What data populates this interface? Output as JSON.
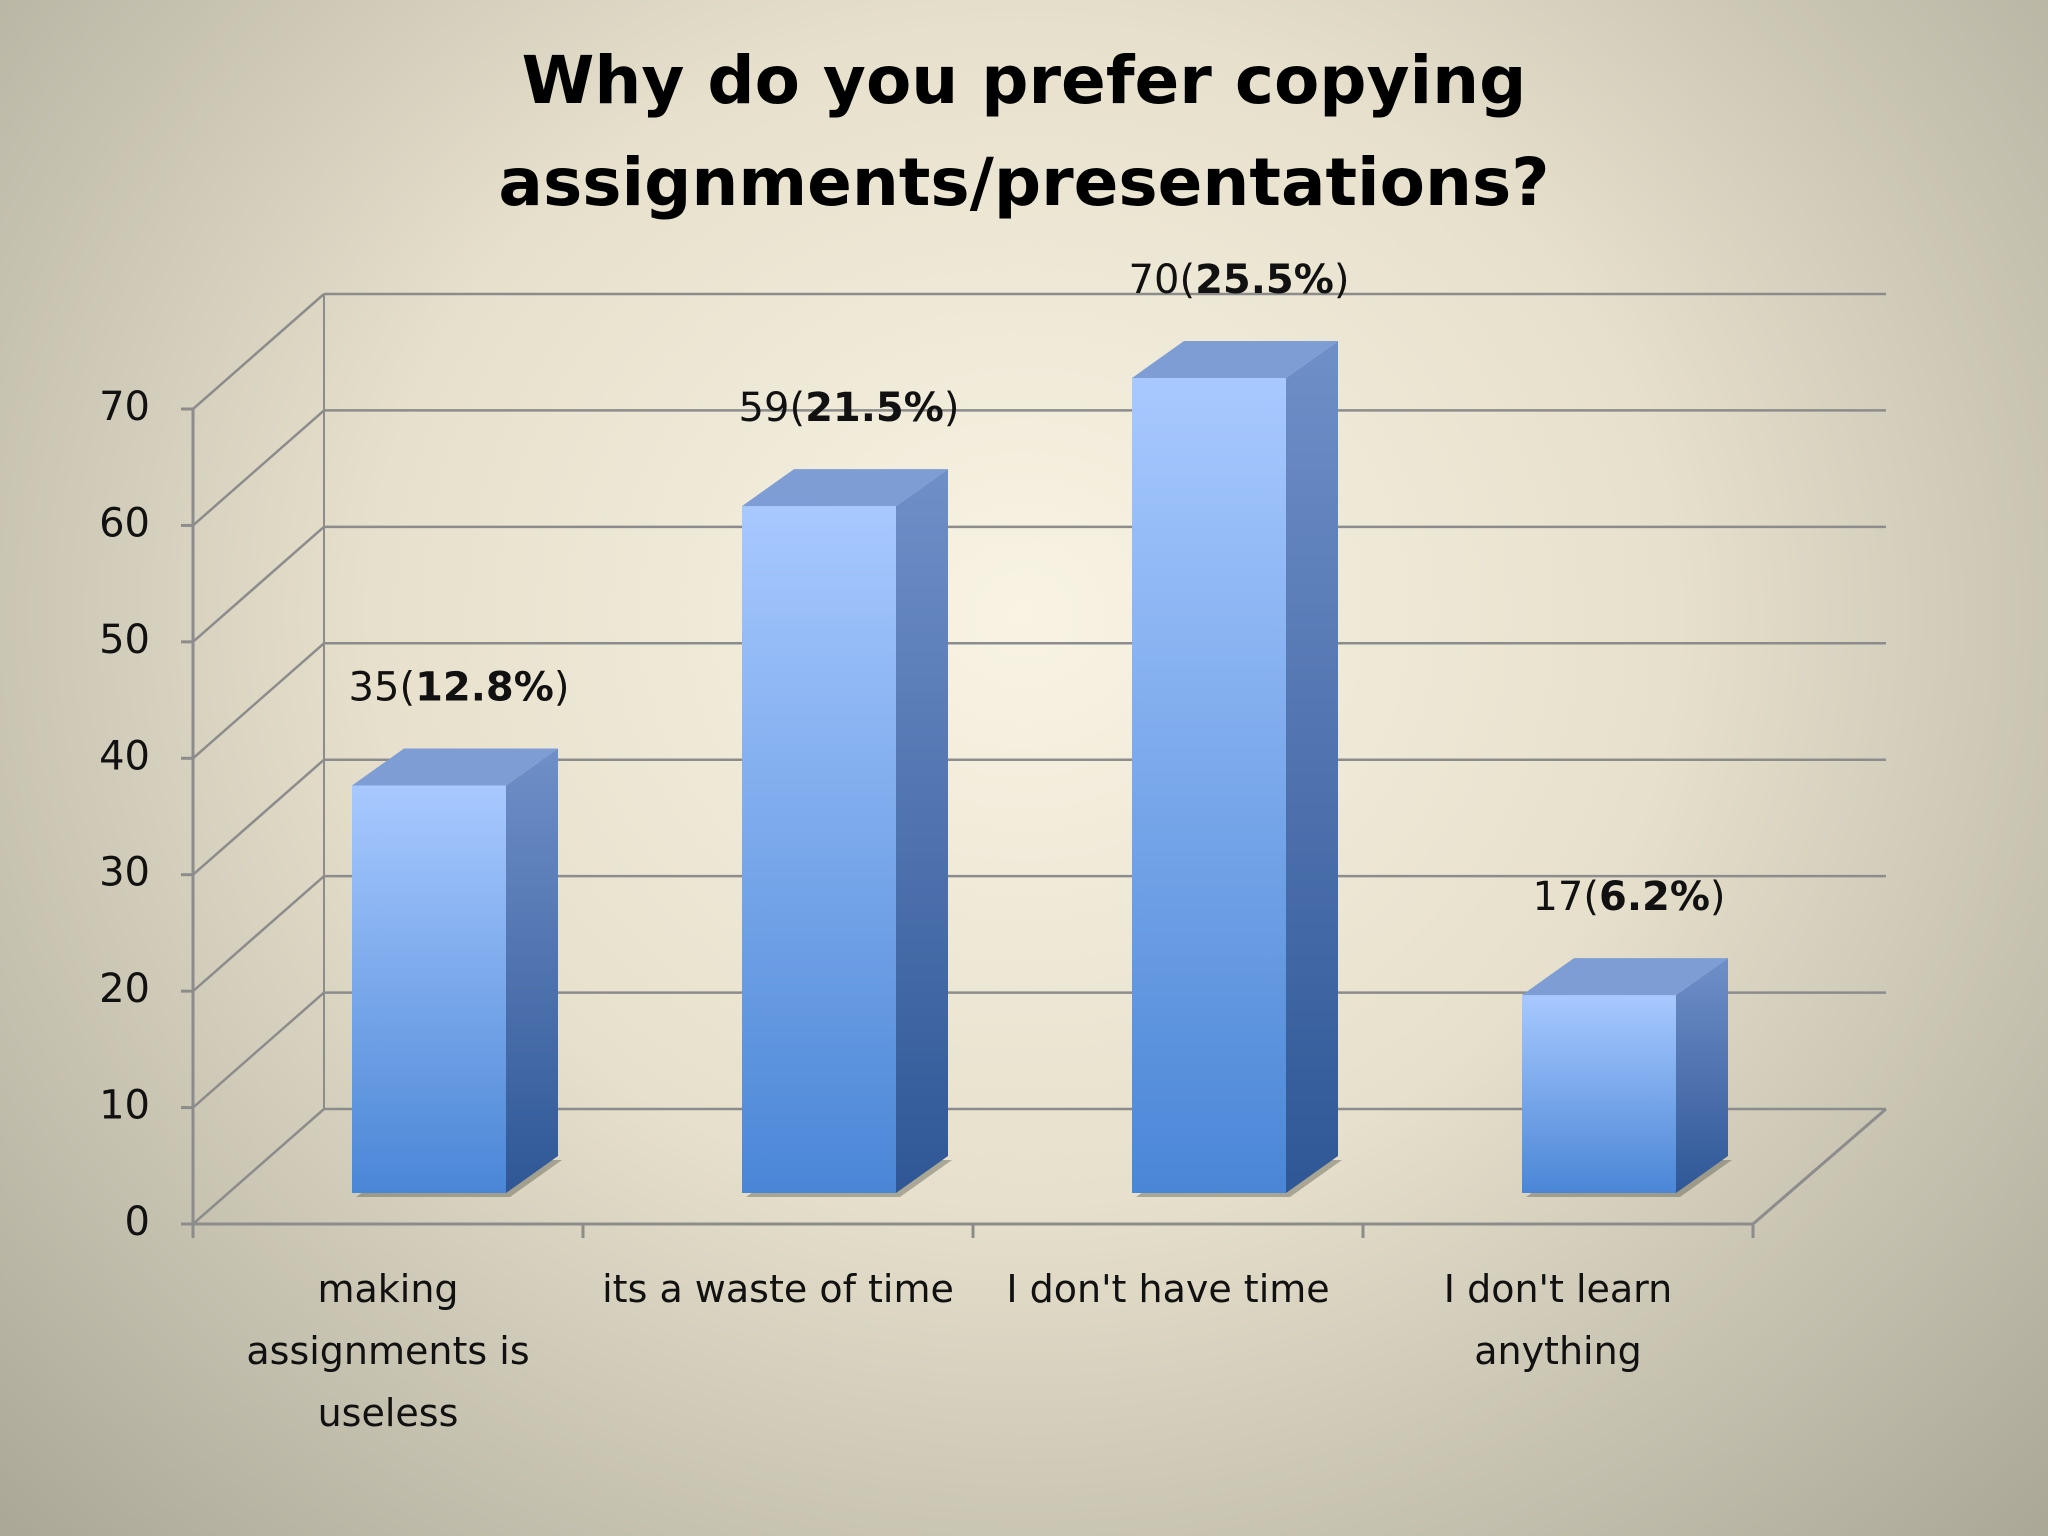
{
  "chart_data": {
    "type": "bar3d",
    "title": "Why do you prefer copying assignments/presentations?",
    "categories": [
      "making assignments is useless",
      "its a waste of time",
      "I don't have time",
      "I don't learn anything"
    ],
    "values": [
      35,
      59,
      70,
      17
    ],
    "value_labels": [
      "35(12.8%)",
      "59(21.5%)",
      "70(25.5%)",
      "17(6.2%)"
    ],
    "color": "#6a9fe8",
    "ylim": [
      0,
      70
    ],
    "yticks": [
      0,
      10,
      20,
      30,
      40,
      50,
      60,
      70
    ],
    "grid": true
  }
}
